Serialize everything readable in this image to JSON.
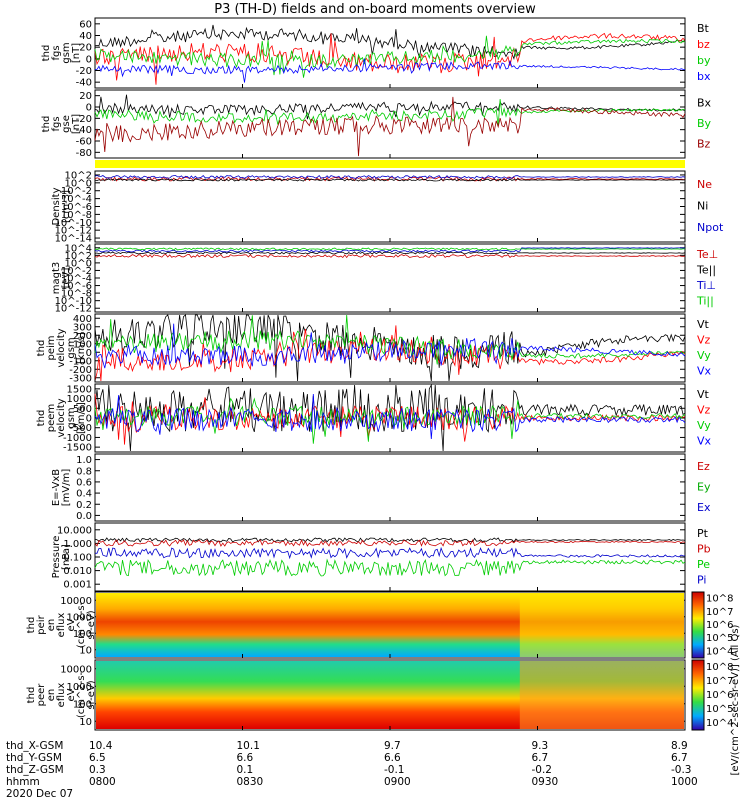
{
  "title": "P3 (TH-D) fields and on-board moments overview",
  "chart_data": {
    "type": "line",
    "x_ticks": [
      "0800",
      "0830",
      "0900",
      "0930",
      "1000"
    ],
    "date_label": "2020 Dec 07",
    "panels": [
      {
        "id": "fgs-gsm",
        "ylabel": [
          "thd",
          "fgs",
          "gsm",
          "[nT]"
        ],
        "yticks": [
          "60",
          "40",
          "20",
          "0",
          "-20",
          "-40"
        ],
        "ylim": [
          -50,
          65
        ],
        "series": [
          {
            "name": "Bt",
            "color": "#000000"
          },
          {
            "name": "bz",
            "color": "#ff0000"
          },
          {
            "name": "by",
            "color": "#00cc00"
          },
          {
            "name": "bx",
            "color": "#0000ff"
          }
        ]
      },
      {
        "id": "fgs-gse",
        "ylabel": [
          "thd",
          "fgs",
          "gse",
          "[nT]"
        ],
        "yticks": [
          "20",
          "0",
          "-20",
          "-40",
          "-60",
          "-80"
        ],
        "ylim": [
          -95,
          30
        ],
        "series": [
          {
            "name": "Bx",
            "color": "#000000"
          },
          {
            "name": "By",
            "color": "#00cc00"
          },
          {
            "name": "Bz",
            "color": "#990000"
          }
        ]
      },
      {
        "id": "density",
        "ylabel": [
          "Density",
          "[cm-3]"
        ],
        "yticks": [
          "10^2",
          "10^0",
          "10^-2",
          "10^-4",
          "10^-6",
          "10^-8",
          "10^-10",
          "10^-12",
          "10^-14"
        ],
        "ylim": [
          -14,
          2
        ],
        "series": [
          {
            "name": "Ne",
            "color": "#cc0000"
          },
          {
            "name": "Ni",
            "color": "#000000"
          },
          {
            "name": "Npot",
            "color": "#0000cc"
          }
        ]
      },
      {
        "id": "temp",
        "ylabel": [
          "magt3",
          "[eV]"
        ],
        "yticks": [
          "10^4",
          "10^2",
          "10^0",
          "10^-2",
          "10^-4",
          "10^-6",
          "10^-8",
          "10^-10",
          "10^-12"
        ],
        "ylim": [
          -12,
          4
        ],
        "series": [
          {
            "name": "Te⊥",
            "color": "#cc0000"
          },
          {
            "name": "Te||",
            "color": "#000000"
          },
          {
            "name": "Ti⊥",
            "color": "#0000cc"
          },
          {
            "name": "Ti||",
            "color": "#00cc00"
          }
        ]
      },
      {
        "id": "peim-v",
        "ylabel": [
          "thd",
          "peim",
          "velocity",
          "gsm",
          "[km/s]"
        ],
        "yticks": [
          "400",
          "300",
          "200",
          "100",
          "0",
          "-100",
          "-200",
          "-300"
        ],
        "ylim": [
          -300,
          400
        ],
        "series": [
          {
            "name": "Vt",
            "color": "#000000"
          },
          {
            "name": "Vz",
            "color": "#ff0000"
          },
          {
            "name": "Vy",
            "color": "#00cc00"
          },
          {
            "name": "Vx",
            "color": "#0000ff"
          }
        ]
      },
      {
        "id": "peem-v",
        "ylabel": [
          "thd",
          "peem",
          "velocity",
          "gsm",
          "[km/s]"
        ],
        "yticks": [
          "1500",
          "1000",
          "500",
          "0",
          "-500",
          "-1000",
          "-1500"
        ],
        "ylim": [
          -1500,
          1500
        ],
        "series": [
          {
            "name": "Vt",
            "color": "#000000"
          },
          {
            "name": "Vz",
            "color": "#ff0000"
          },
          {
            "name": "Vy",
            "color": "#00cc00"
          },
          {
            "name": "Vx",
            "color": "#0000ff"
          }
        ]
      },
      {
        "id": "efield",
        "ylabel": [
          "E=-VxB",
          "[mV/m]"
        ],
        "yticks": [
          "1.0",
          "0.8",
          "0.6",
          "0.4",
          "0.2",
          "0.0"
        ],
        "ylim": [
          0,
          1
        ],
        "series": [
          {
            "name": "Ez",
            "color": "#cc0000"
          },
          {
            "name": "Ey",
            "color": "#00aa00"
          },
          {
            "name": "Ex",
            "color": "#0000cc"
          }
        ]
      },
      {
        "id": "pressure",
        "ylabel": [
          "Pressure",
          "[nPa]"
        ],
        "yticks": [
          "10.000",
          "1.000",
          "0.100",
          "0.010",
          "0.001"
        ],
        "ylim": [
          -3,
          1
        ],
        "log": true,
        "series": [
          {
            "name": "Pt",
            "color": "#000000"
          },
          {
            "name": "Pb",
            "color": "#cc0000"
          },
          {
            "name": "Pe",
            "color": "#00cc00"
          },
          {
            "name": "Pi",
            "color": "#0000cc"
          }
        ]
      },
      {
        "id": "peir-spec",
        "type": "heatmap",
        "ylabel": [
          "thd",
          "peir",
          "en",
          "eflux",
          "eV",
          "(cm^2-s-",
          "sr-eV)"
        ],
        "yticks": [
          "10000",
          "1000",
          "100",
          "10"
        ]
      },
      {
        "id": "peer-spec",
        "type": "heatmap",
        "ylabel": [
          "thd",
          "peer",
          "en",
          "eflux",
          "eV",
          "(cm^2-s-",
          "sr-eV)"
        ],
        "yticks": [
          "10000",
          "1000",
          "100",
          "10"
        ]
      }
    ],
    "colorbar": {
      "ticks": [
        "10^8",
        "10^7",
        "10^6",
        "10^5",
        "10^4"
      ],
      "label": "[eV/(cm^2-sec-sr-eV)] (All Qs)"
    }
  },
  "footer": {
    "rows": [
      {
        "label": "thd_X-GSM",
        "values": [
          "10.4",
          "10.1",
          "9.7",
          "9.3",
          "8.9"
        ]
      },
      {
        "label": "thd_Y-GSM",
        "values": [
          "6.5",
          "6.6",
          "6.6",
          "6.7",
          "6.7"
        ]
      },
      {
        "label": "thd_Z-GSM",
        "values": [
          "0.3",
          "0.1",
          "-0.1",
          "-0.2",
          "-0.3"
        ]
      },
      {
        "label": "hhmm",
        "values": [
          "0800",
          "0830",
          "0900",
          "0930",
          "1000"
        ]
      }
    ],
    "date": "2020 Dec 07"
  },
  "status_bar_color": "#ffff00"
}
